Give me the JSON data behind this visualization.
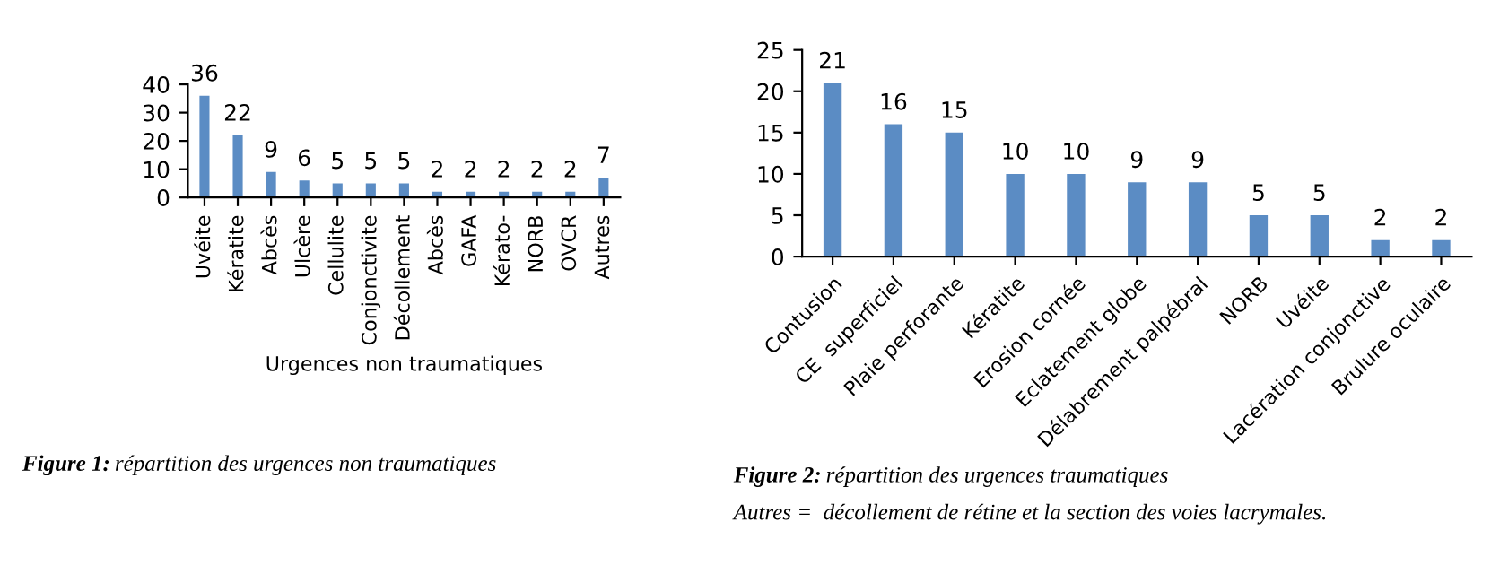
{
  "chart_data": [
    {
      "type": "bar",
      "xlabel": "Urgences non traumatiques",
      "categories": [
        "Uvéite",
        "Kératite",
        "Abcès",
        "Ulcère",
        "Cellulite",
        "Conjonctivite",
        "Décollement",
        "Abcès",
        "GAFA",
        "Kérato-",
        "NORB",
        "OVCR",
        "Autres"
      ],
      "values": [
        36,
        22,
        9,
        6,
        5,
        5,
        5,
        2,
        2,
        2,
        2,
        2,
        7
      ],
      "color": "#5b8cc4",
      "ylim": [
        0,
        40
      ],
      "yticks": [
        0,
        10,
        20,
        30,
        40
      ],
      "data_labels": true,
      "grid": false,
      "legend": false,
      "annotations": [
        "Figure 1: répartition des urgences non traumatiques"
      ]
    },
    {
      "type": "bar",
      "categories": [
        "Contusion",
        "CE  superficiel",
        "Plaie perforante",
        "Kératite",
        "Erosion cornée",
        "Eclatement globe",
        "Délabrement palpébral",
        "NORB",
        "Uvéite",
        "Lacération conjonctive",
        "Brulure oculaire"
      ],
      "values": [
        21,
        16,
        15,
        10,
        10,
        9,
        9,
        5,
        5,
        2,
        2
      ],
      "color": "#5b8cc4",
      "ylim": [
        0,
        25
      ],
      "yticks": [
        0,
        5,
        10,
        15,
        20,
        25
      ],
      "data_labels": true,
      "grid": false,
      "legend": false,
      "annotations": [
        "Figure 2: répartition des urgences traumatiques",
        "Autres =  décollement de rétine et la section des voies lacrymales."
      ]
    }
  ]
}
